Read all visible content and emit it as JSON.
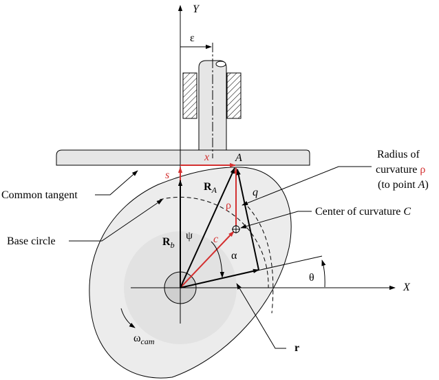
{
  "labels": {
    "y_axis": "Y",
    "x_axis": "X",
    "epsilon": "ε",
    "x": "x",
    "s": "s",
    "A": "A",
    "R_main": "R",
    "R_A_sub": "A",
    "R_b_main": "R",
    "R_b_sub": "b",
    "rho": "ρ",
    "q": "q",
    "psi": "ψ",
    "c": "c",
    "alpha": "α",
    "theta": "θ",
    "r": "r",
    "omega_main": "ω",
    "omega_sub": "cam",
    "common_tangent": "Common tangent",
    "base_circle": "Base circle",
    "radius_line1": "Radius of",
    "radius_line2": "curvature",
    "radius_line2_rho": "ρ",
    "radius_line3_pre": "(to point ",
    "radius_line3_A": "A",
    "radius_line3_post": ")",
    "center_text": "Center of curvature",
    "center_C": "C"
  },
  "colors": {
    "red": "#d32f2f",
    "cam_fill": "#ececec",
    "base_fill": "#e2e2e2",
    "follower_fill": "#e6e6e6",
    "hub_fill": "#cfcfcf"
  }
}
